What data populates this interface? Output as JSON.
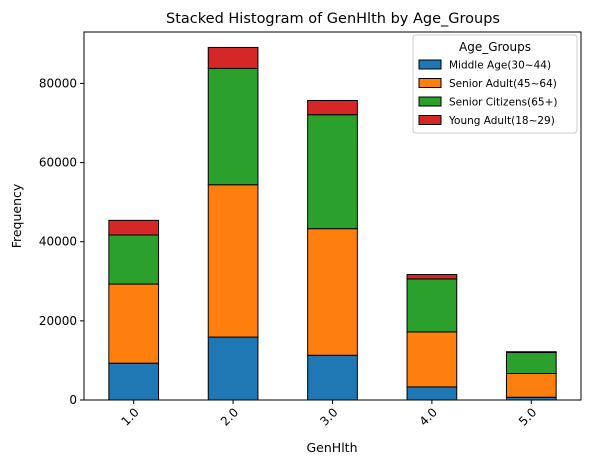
{
  "chart_data": {
    "type": "bar",
    "stacked": true,
    "title": "Stacked Histogram of GenHlth by Age_Groups",
    "xlabel": "GenHlth",
    "ylabel": "Frequency",
    "categories": [
      "1.0",
      "2.0",
      "3.0",
      "4.0",
      "5.0"
    ],
    "ylim": [
      0,
      93000
    ],
    "yticks": [
      0,
      20000,
      40000,
      60000,
      80000
    ],
    "series": [
      {
        "name": "Middle Age(30~44)",
        "color": "#1f77b4",
        "values": [
          9300,
          15900,
          11300,
          3300,
          700
        ]
      },
      {
        "name": "Senior Adult(45~64)",
        "color": "#ff7f0e",
        "values": [
          20000,
          38500,
          32000,
          13900,
          6000
        ]
      },
      {
        "name": "Senior Citizens(65+)",
        "color": "#2ca02c",
        "values": [
          12400,
          29400,
          28800,
          13400,
          5300
        ]
      },
      {
        "name": "Young Adult(18~29)",
        "color": "#d62728",
        "values": [
          3700,
          5300,
          3600,
          1100,
          200
        ]
      }
    ],
    "legend": {
      "title": "Age_Groups",
      "placement": "top-right"
    },
    "grid": false
  }
}
